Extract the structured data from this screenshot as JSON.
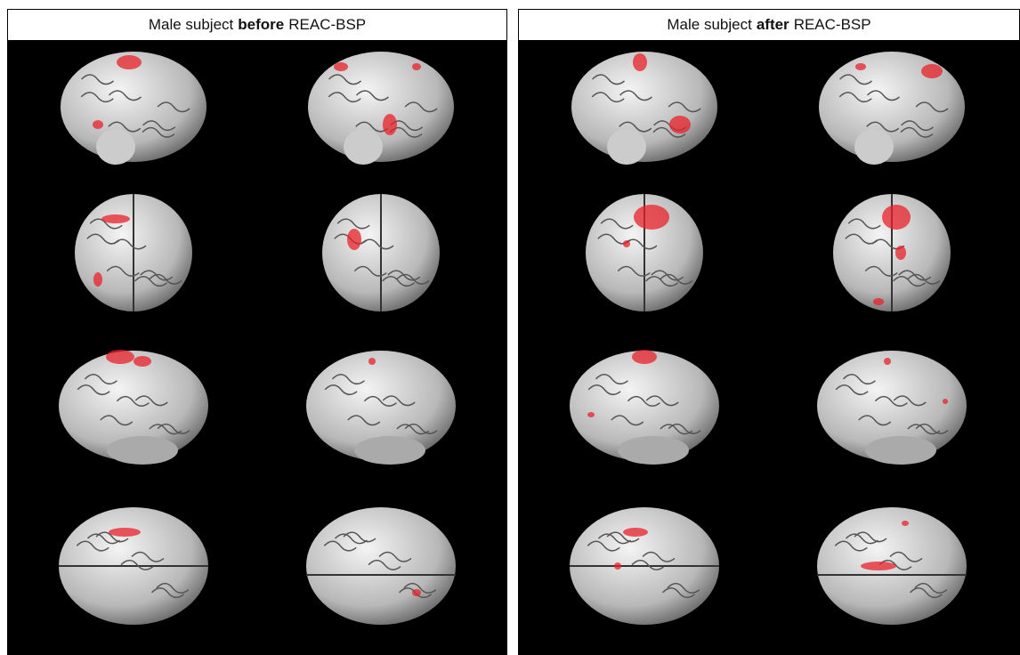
{
  "panels": [
    {
      "prefix": "Male subject",
      "emphasis": "before",
      "suffix": "REAC-BSP"
    },
    {
      "prefix": "Male subject",
      "emphasis": "after",
      "suffix": "REAC-BSP"
    }
  ]
}
